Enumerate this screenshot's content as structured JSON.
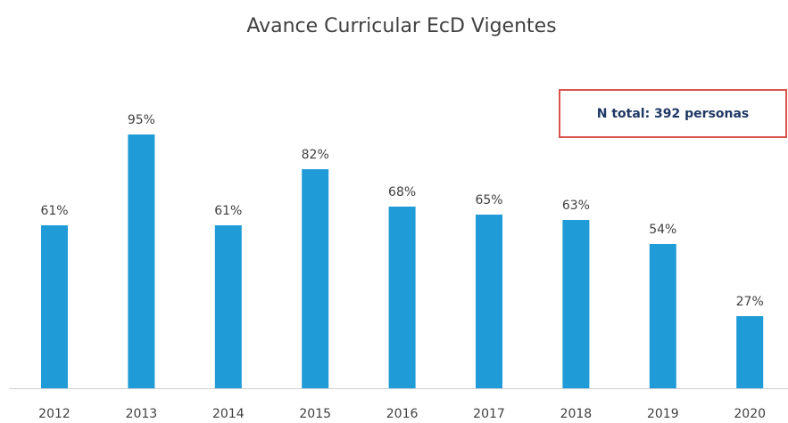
{
  "chart_data": {
    "type": "bar",
    "title": "Avance Curricular EcD Vigentes",
    "annotation": "N total: 392 personas",
    "categories": [
      "2012",
      "2013",
      "2014",
      "2015",
      "2016",
      "2017",
      "2018",
      "2019",
      "2020"
    ],
    "values": [
      61,
      95,
      61,
      82,
      68,
      65,
      63,
      54,
      27
    ],
    "value_labels": [
      "61%",
      "95%",
      "61%",
      "82%",
      "68%",
      "65%",
      "63%",
      "54%",
      "27%"
    ],
    "color": "#1f9bd7"
  }
}
